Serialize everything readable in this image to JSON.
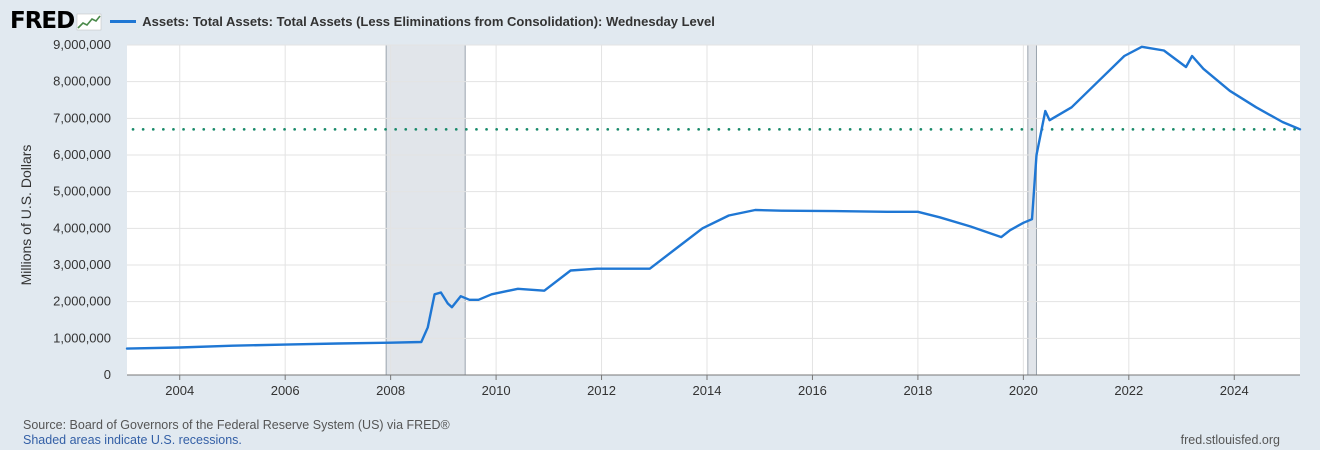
{
  "brand": {
    "logo_text": "FRED",
    "logo_icon": "chart-line-icon"
  },
  "chart_data": {
    "type": "line",
    "title": "",
    "ylabel": "Millions of U.S. Dollars",
    "xlabel": "",
    "ylim": [
      0,
      9000000
    ],
    "xlim": [
      "2003-01-01",
      "2025-04-01"
    ],
    "y_ticks": [
      "0",
      "1,000,000",
      "2,000,000",
      "3,000,000",
      "4,000,000",
      "5,000,000",
      "6,000,000",
      "7,000,000",
      "8,000,000",
      "9,000,000"
    ],
    "x_ticks": [
      "2004",
      "2006",
      "2008",
      "2010",
      "2012",
      "2014",
      "2016",
      "2018",
      "2020",
      "2022",
      "2024"
    ],
    "grid": true,
    "legend_position": "top-left",
    "recessions": [
      {
        "start": "2007-12-01",
        "end": "2009-06-01"
      },
      {
        "start": "2020-02-01",
        "end": "2020-04-01"
      }
    ],
    "reference_line": {
      "value": 6700000,
      "style": "dotted",
      "color": "#1a8a6a"
    },
    "series": [
      {
        "name": "Assets: Total Assets: Total Assets (Less Eliminations from Consolidation): Wednesday Level",
        "color": "#1f77d4",
        "points": [
          [
            "2003-01-01",
            720000
          ],
          [
            "2004-01-01",
            750000
          ],
          [
            "2005-01-01",
            800000
          ],
          [
            "2006-01-01",
            830000
          ],
          [
            "2007-01-01",
            860000
          ],
          [
            "2008-01-01",
            880000
          ],
          [
            "2008-08-01",
            900000
          ],
          [
            "2008-09-15",
            1300000
          ],
          [
            "2008-11-01",
            2200000
          ],
          [
            "2008-12-15",
            2250000
          ],
          [
            "2009-02-01",
            1950000
          ],
          [
            "2009-03-01",
            1850000
          ],
          [
            "2009-05-01",
            2150000
          ],
          [
            "2009-07-01",
            2050000
          ],
          [
            "2009-09-01",
            2050000
          ],
          [
            "2009-12-01",
            2200000
          ],
          [
            "2010-06-01",
            2350000
          ],
          [
            "2010-12-01",
            2300000
          ],
          [
            "2011-06-01",
            2850000
          ],
          [
            "2011-12-01",
            2900000
          ],
          [
            "2012-06-01",
            2900000
          ],
          [
            "2012-12-01",
            2900000
          ],
          [
            "2013-06-01",
            3450000
          ],
          [
            "2013-12-01",
            4000000
          ],
          [
            "2014-06-01",
            4350000
          ],
          [
            "2014-12-01",
            4500000
          ],
          [
            "2015-06-01",
            4480000
          ],
          [
            "2016-06-01",
            4470000
          ],
          [
            "2017-06-01",
            4450000
          ],
          [
            "2018-01-01",
            4450000
          ],
          [
            "2018-06-01",
            4300000
          ],
          [
            "2019-01-01",
            4050000
          ],
          [
            "2019-08-01",
            3760000
          ],
          [
            "2019-10-01",
            3950000
          ],
          [
            "2020-01-01",
            4150000
          ],
          [
            "2020-03-01",
            4250000
          ],
          [
            "2020-04-01",
            6000000
          ],
          [
            "2020-06-01",
            7200000
          ],
          [
            "2020-07-01",
            6950000
          ],
          [
            "2020-12-01",
            7300000
          ],
          [
            "2021-06-01",
            8000000
          ],
          [
            "2021-12-01",
            8700000
          ],
          [
            "2022-04-01",
            8950000
          ],
          [
            "2022-09-01",
            8850000
          ],
          [
            "2023-02-01",
            8400000
          ],
          [
            "2023-03-15",
            8700000
          ],
          [
            "2023-06-01",
            8350000
          ],
          [
            "2023-12-01",
            7750000
          ],
          [
            "2024-06-01",
            7300000
          ],
          [
            "2024-12-01",
            6900000
          ],
          [
            "2025-04-01",
            6700000
          ]
        ]
      }
    ]
  },
  "footer": {
    "source": "Source: Board of Governors of the Federal Reserve System (US) via FRED®",
    "recession_note": "Shaded areas indicate U.S. recessions.",
    "site": "fred.stlouisfed.org"
  }
}
